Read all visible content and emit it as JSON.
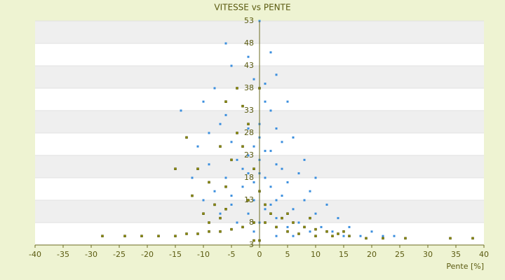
{
  "chart_data": {
    "type": "scatter",
    "title": "VITESSE vs PENTE",
    "x_label": "Pente [%]",
    "xlim": [
      -40,
      40
    ],
    "xticks": [
      -40,
      -35,
      -30,
      -25,
      -20,
      -15,
      -10,
      -5,
      0,
      5,
      10,
      15,
      20,
      25,
      30,
      35,
      40
    ],
    "ylim": [
      3,
      53
    ],
    "yticks": [
      3,
      8,
      13,
      18,
      23,
      28,
      33,
      38,
      43,
      48,
      53
    ],
    "grid": true,
    "series": [
      {
        "color": "#3a8ede",
        "x": [
          -6,
          0,
          2,
          -5,
          3,
          -8,
          -4,
          1,
          -14,
          -10,
          -6,
          -3,
          2,
          5,
          -9,
          -7,
          -2,
          0,
          3,
          6,
          -11,
          -5,
          -1,
          2,
          4,
          8,
          -9,
          -4,
          0,
          3,
          7,
          10,
          -12,
          -6,
          -2,
          1,
          5,
          9,
          -8,
          -3,
          0,
          4,
          8,
          12,
          -10,
          -5,
          -1,
          2,
          6,
          10,
          14,
          -7,
          -2,
          3,
          7,
          11,
          16,
          20,
          -4,
          0,
          5,
          9,
          13,
          18,
          24,
          -1,
          3,
          6,
          15,
          22,
          1,
          -1,
          0,
          -2,
          -3,
          1,
          2,
          -1,
          0,
          4,
          -5,
          1,
          -2,
          3
        ],
        "values": [
          48,
          53,
          46,
          43,
          41,
          38,
          38,
          39,
          33,
          35,
          32,
          34,
          33,
          35,
          28,
          30,
          29,
          30,
          29,
          27,
          25,
          26,
          25,
          24,
          26,
          22,
          21,
          22,
          22,
          21,
          19,
          18,
          18,
          18,
          19,
          18,
          17,
          15,
          15,
          16,
          15,
          14,
          13,
          12,
          13,
          12,
          13,
          12,
          11,
          10,
          9,
          10,
          10,
          9,
          8,
          7,
          7,
          6,
          8,
          8,
          7,
          6,
          6,
          5,
          5,
          6,
          5,
          5,
          5,
          5,
          35,
          40,
          27,
          45,
          20,
          24,
          16,
          17,
          19,
          20,
          14,
          11,
          23,
          13
        ]
      },
      {
        "color": "#8c8c00",
        "x": [
          -28,
          -24,
          -21,
          -18,
          -15,
          -13,
          -11,
          -9,
          -7,
          -5,
          -3,
          -1,
          1,
          3,
          5,
          7,
          10,
          13,
          16,
          19,
          22,
          26,
          34,
          38,
          -10,
          -12,
          -11,
          -13,
          -8,
          -6,
          -5,
          -4,
          -3,
          -4,
          -2,
          -3,
          -1,
          0,
          -2,
          -7,
          -9,
          2,
          4,
          6,
          8,
          10,
          12,
          14,
          1,
          0,
          -6,
          -7,
          -9,
          -1,
          0,
          5,
          9,
          15,
          -15,
          -6
        ],
        "values": [
          5,
          5,
          5,
          5,
          5,
          5.5,
          5.5,
          6,
          6,
          6.5,
          7,
          8,
          8,
          7,
          6,
          5.5,
          5,
          5,
          5,
          4.5,
          4.5,
          4.5,
          4.5,
          4.5,
          10,
          14,
          20,
          27,
          12,
          16,
          22,
          28,
          34,
          38,
          30,
          25,
          20,
          15,
          13,
          9,
          8,
          10,
          9,
          8,
          7,
          6.5,
          6,
          5.5,
          12,
          38,
          35,
          25,
          17,
          4,
          4,
          10,
          9,
          6,
          20,
          11
        ]
      }
    ]
  }
}
